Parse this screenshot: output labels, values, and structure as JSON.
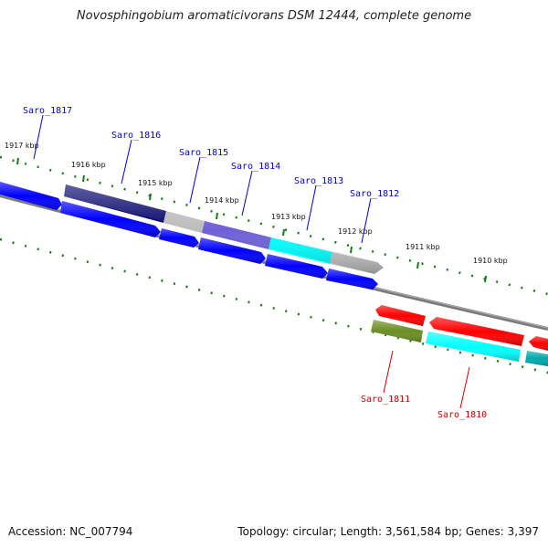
{
  "title": "Novosphingobium aromaticivorans DSM 12444, complete genome",
  "footer": {
    "accession": "Accession: NC_007794",
    "topology": "Topology: circular; Length: 3,561,584 bp; Genes: 3,397"
  },
  "colors": {
    "backbone": "#808080",
    "forward_label": "#0000cc",
    "reverse_label": "#cc0000",
    "tick": "#1a7a1a"
  },
  "kbp_labels": [
    "1917 kbp",
    "1916 kbp",
    "1915 kbp",
    "1914 kbp",
    "1913 kbp",
    "1912 kbp",
    "1911 kbp",
    "1910 kbp"
  ],
  "forward_genes": [
    {
      "name": "Saro_1817",
      "color": "#0000ff"
    },
    {
      "name": "Saro_1816",
      "color": "#0a0a6e"
    },
    {
      "name": "Saro_1815",
      "color": "#bdbdbd"
    },
    {
      "name": "Saro_1814",
      "color": "#7060d8"
    },
    {
      "name": "Saro_1813",
      "color": "#00ffff"
    },
    {
      "name": "Saro_1812",
      "color": "#c4c4c4"
    }
  ],
  "reverse_genes": [
    {
      "name": "Saro_1811",
      "color": "#6b8e23"
    },
    {
      "name": "Saro_1810",
      "color": "#00ffff"
    }
  ]
}
